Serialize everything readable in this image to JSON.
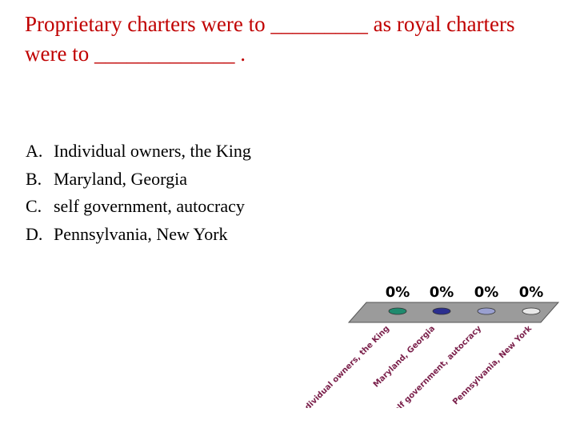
{
  "slide": {
    "question": {
      "line1": "Proprietary charters were to _________ as royal charters",
      "line2": "were to _____________ ."
    },
    "answers": [
      {
        "letter": "A.",
        "text": "Individual owners, the King"
      },
      {
        "letter": "B.",
        "text": "Maryland, Georgia"
      },
      {
        "letter": "C.",
        "text": "self government, autocracy"
      },
      {
        "letter": "D.",
        "text": "Pennsylvania, New York"
      }
    ]
  },
  "chart_data": {
    "type": "bar",
    "title": "",
    "categories": [
      "Individual owners, the King",
      "Maryland, Georgia",
      "self government, autocracy",
      "Pennsylvania, New York"
    ],
    "values": [
      0,
      0,
      0,
      0
    ],
    "value_labels": [
      "0%",
      "0%",
      "0%",
      "0%"
    ],
    "colors": [
      "#1f8a6e",
      "#2b2f8f",
      "#9aa0d0",
      "#e8e8e8"
    ],
    "ylim": [
      0,
      100
    ],
    "xlabel": "",
    "ylabel": ""
  }
}
